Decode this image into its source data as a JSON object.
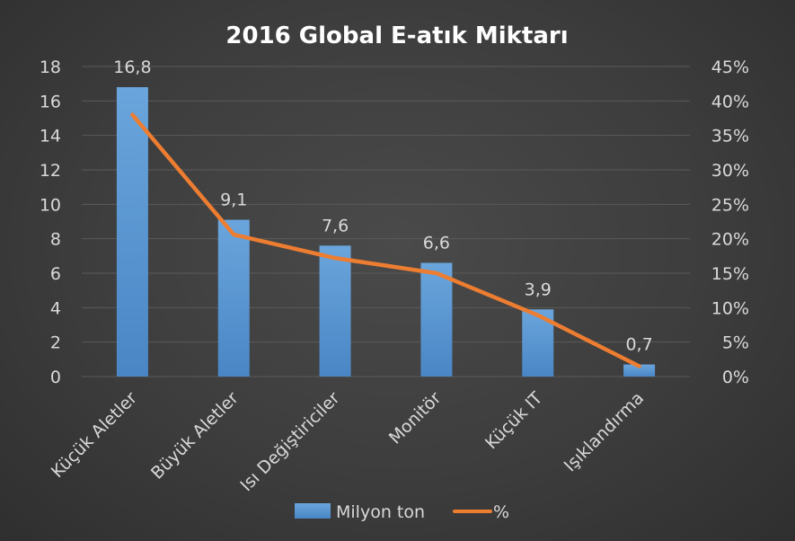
{
  "chart_data": {
    "type": "bar",
    "title": "2016 Global E-atık Miktarı",
    "categories": [
      "Küçük Aletler",
      "Büyük Aletler",
      "Isı Değiştiriciler",
      "Monitör",
      "Küçük IT",
      "Işıklandırma"
    ],
    "series": [
      {
        "name": "Milyon ton",
        "type": "bar",
        "axis": "left",
        "values": [
          16.8,
          9.1,
          7.6,
          6.6,
          3.9,
          0.7
        ],
        "labels": [
          "16,8",
          "9,1",
          "7,6",
          "6,6",
          "3,9",
          "0,7"
        ],
        "color": "#5b9bd5"
      },
      {
        "name": "%",
        "type": "line",
        "axis": "right",
        "values": [
          38,
          20.6,
          17.2,
          15,
          8.9,
          1.5
        ],
        "color": "#ed7d31"
      }
    ],
    "ylim": [
      0,
      18
    ],
    "y2lim": [
      0,
      45
    ],
    "yticks": [
      "0",
      "2",
      "4",
      "6",
      "8",
      "10",
      "12",
      "14",
      "16",
      "18"
    ],
    "y2ticks": [
      "0%",
      "5%",
      "10%",
      "15%",
      "20%",
      "25%",
      "30%",
      "35%",
      "40%",
      "45%"
    ],
    "grid": true,
    "legend": "bottom"
  }
}
